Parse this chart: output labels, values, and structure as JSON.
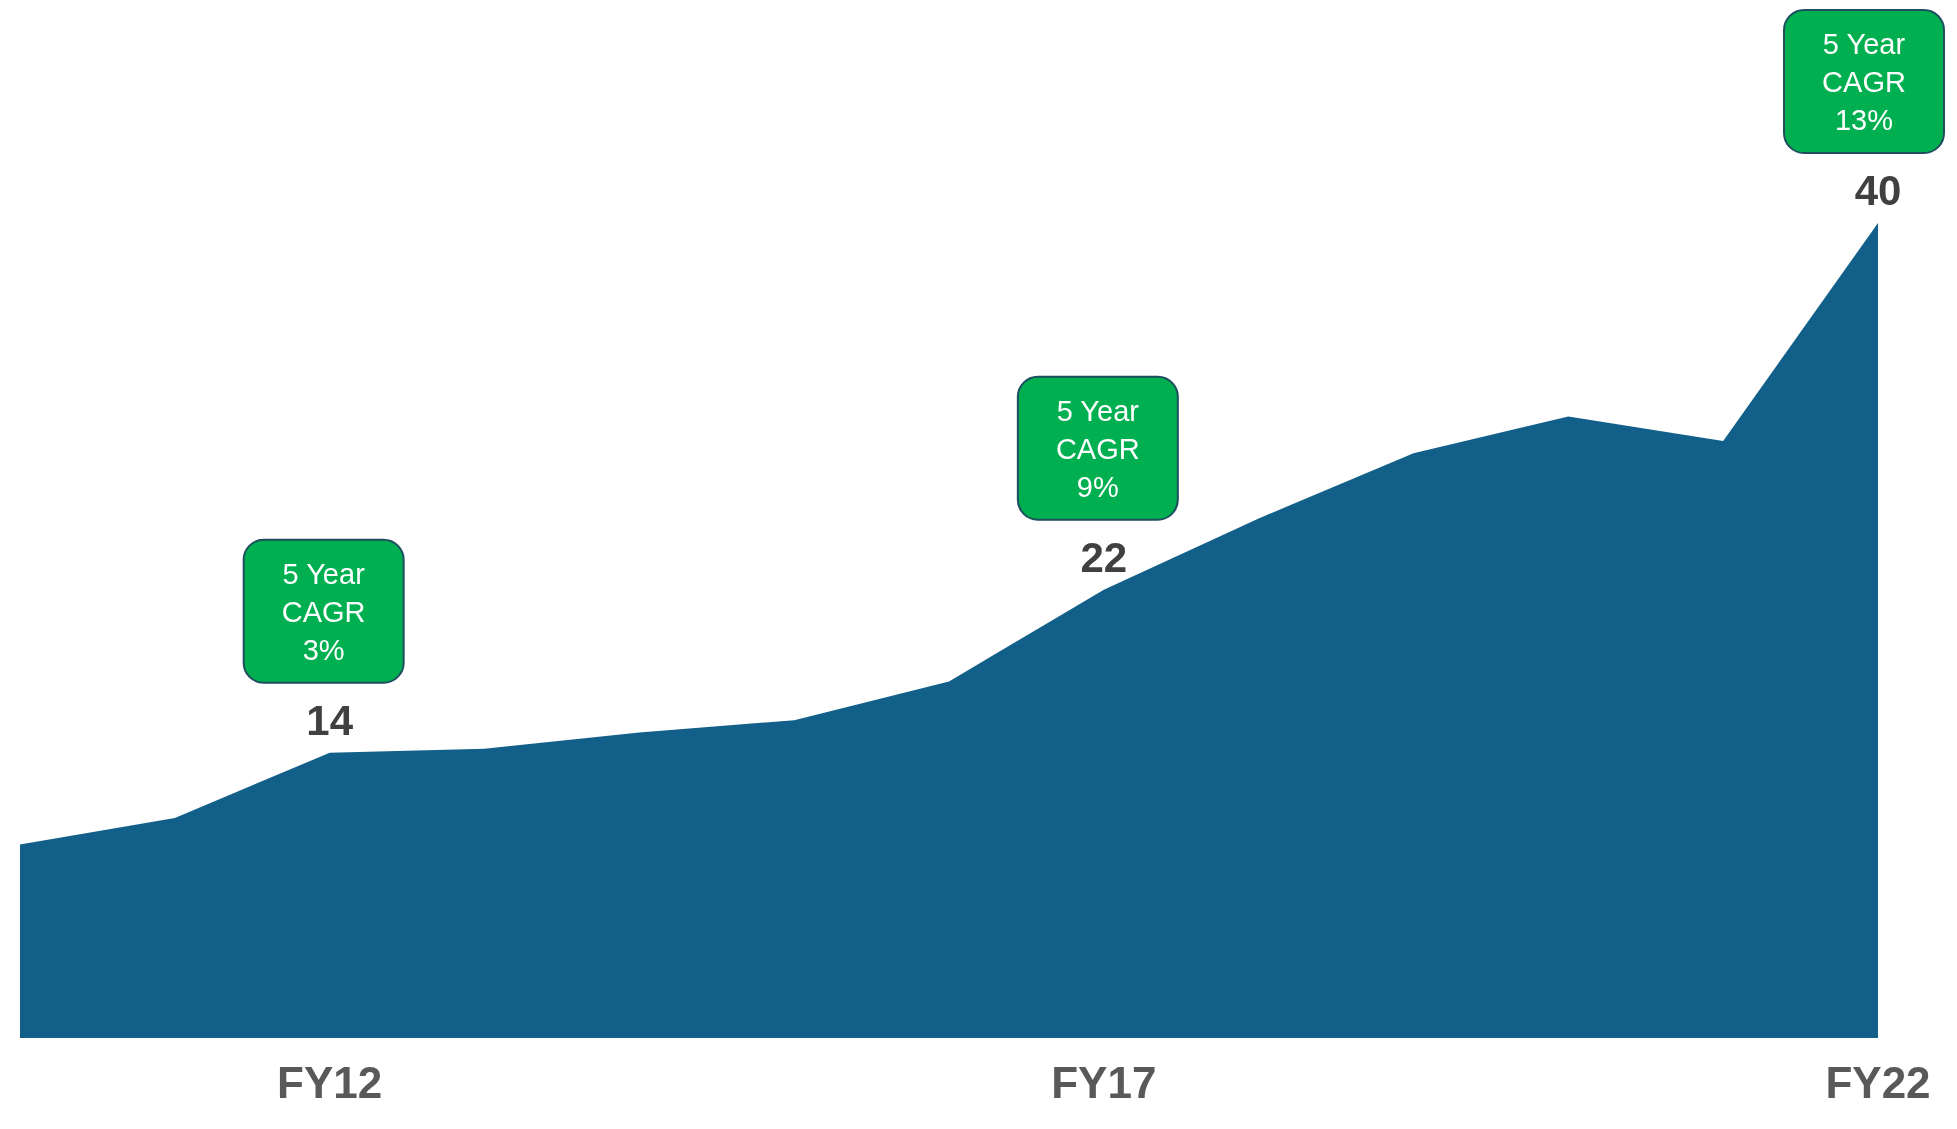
{
  "chart_data": {
    "type": "area",
    "categories": [
      null,
      null,
      "FY12",
      null,
      null,
      null,
      null,
      "FY17",
      null,
      null,
      null,
      null,
      "FY22"
    ],
    "series": [
      {
        "color": "#12608a",
        "values": [
          9.5,
          10.8,
          14,
          14.2,
          15.0,
          15.6,
          17.5,
          22,
          25.5,
          28.7,
          30.5,
          29.3,
          40
        ],
        "value_labels": [
          null,
          null,
          "14",
          null,
          null,
          null,
          null,
          "22",
          null,
          null,
          null,
          null,
          "40"
        ]
      }
    ],
    "annotations": [
      {
        "text": "5 Year\nCAGR\n3%",
        "x": "FY12",
        "y": 14
      },
      {
        "text": "5 Year\nCAGR\n9%",
        "x": "FY17",
        "y": 22
      },
      {
        "text": "5 Year\nCAGR\n13%",
        "x": "FY22",
        "y": 40
      }
    ]
  }
}
